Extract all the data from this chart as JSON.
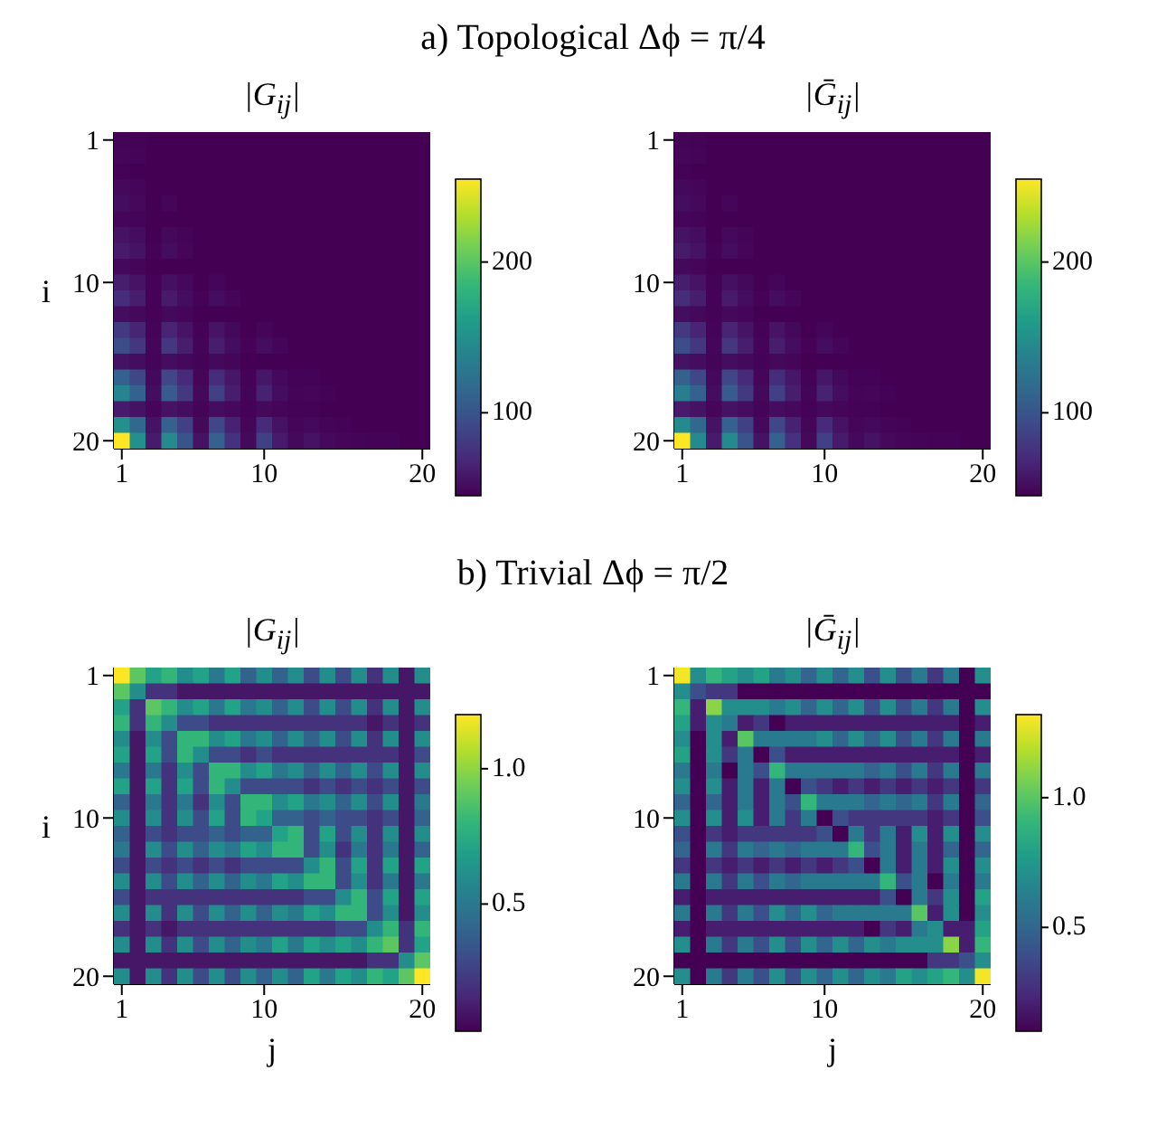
{
  "chart_data": [
    {
      "type": "heatmap",
      "title": "|G$_{ij}$|",
      "ylabel": "i",
      "annotations": [
        "a) Topological Δϕ = π/4"
      ],
      "categories": [
        "1",
        null,
        null,
        null,
        null,
        null,
        null,
        null,
        null,
        "10",
        null,
        null,
        null,
        null,
        null,
        null,
        null,
        null,
        null,
        "20"
      ],
      "y_categories": [
        "1",
        null,
        null,
        null,
        null,
        null,
        null,
        null,
        null,
        "10",
        null,
        null,
        null,
        null,
        null,
        null,
        null,
        null,
        null,
        "20"
      ],
      "clim": [
        45,
        255
      ],
      "cticks": [
        100,
        200
      ],
      "cells": [
        [
          47,
          46,
          45,
          45,
          45,
          45,
          45,
          45,
          45,
          45,
          45,
          45,
          45,
          45,
          45,
          45,
          45,
          45,
          45,
          45
        ],
        [
          48,
          47,
          45,
          45,
          45,
          45,
          45,
          45,
          45,
          45,
          45,
          45,
          45,
          45,
          45,
          45,
          45,
          45,
          45,
          45
        ],
        [
          46,
          45,
          45,
          45,
          45,
          45,
          45,
          45,
          45,
          45,
          45,
          45,
          45,
          45,
          45,
          45,
          45,
          45,
          45,
          45
        ],
        [
          50,
          48,
          45,
          45,
          45,
          45,
          45,
          45,
          45,
          45,
          45,
          45,
          45,
          45,
          45,
          45,
          45,
          45,
          45,
          45
        ],
        [
          52,
          50,
          45,
          48,
          45,
          45,
          45,
          45,
          45,
          45,
          45,
          45,
          45,
          45,
          45,
          45,
          45,
          45,
          45,
          45
        ],
        [
          48,
          47,
          45,
          45,
          45,
          45,
          45,
          45,
          45,
          45,
          45,
          45,
          45,
          45,
          45,
          45,
          45,
          45,
          45,
          45
        ],
        [
          55,
          52,
          45,
          50,
          47,
          45,
          45,
          45,
          45,
          45,
          45,
          45,
          45,
          45,
          45,
          45,
          45,
          45,
          45,
          45
        ],
        [
          60,
          55,
          46,
          52,
          48,
          45,
          45,
          45,
          45,
          45,
          45,
          45,
          45,
          45,
          45,
          45,
          45,
          45,
          45,
          45
        ],
        [
          50,
          48,
          45,
          45,
          45,
          45,
          45,
          45,
          45,
          45,
          45,
          45,
          45,
          45,
          45,
          45,
          45,
          45,
          45,
          45
        ],
        [
          62,
          56,
          46,
          54,
          50,
          45,
          48,
          45,
          45,
          45,
          45,
          45,
          45,
          45,
          45,
          45,
          45,
          45,
          45,
          45
        ],
        [
          72,
          62,
          46,
          60,
          52,
          46,
          52,
          48,
          45,
          45,
          45,
          45,
          45,
          45,
          45,
          45,
          45,
          45,
          45,
          45
        ],
        [
          52,
          50,
          46,
          50,
          48,
          45,
          45,
          45,
          45,
          45,
          45,
          45,
          45,
          45,
          45,
          45,
          45,
          45,
          45,
          45
        ],
        [
          80,
          66,
          47,
          66,
          56,
          46,
          56,
          50,
          45,
          48,
          45,
          45,
          45,
          45,
          45,
          45,
          45,
          45,
          45,
          45
        ],
        [
          95,
          78,
          48,
          78,
          62,
          47,
          62,
          52,
          46,
          52,
          48,
          45,
          45,
          45,
          45,
          45,
          45,
          45,
          45,
          45
        ],
        [
          55,
          52,
          47,
          52,
          50,
          46,
          50,
          48,
          45,
          45,
          45,
          45,
          45,
          45,
          45,
          45,
          45,
          45,
          45,
          45
        ],
        [
          110,
          90,
          50,
          90,
          70,
          48,
          72,
          58,
          46,
          58,
          50,
          46,
          46,
          45,
          45,
          45,
          45,
          45,
          45,
          45
        ],
        [
          140,
          110,
          52,
          105,
          80,
          50,
          85,
          62,
          47,
          65,
          52,
          47,
          48,
          46,
          45,
          45,
          45,
          45,
          45,
          45
        ],
        [
          60,
          55,
          48,
          55,
          52,
          47,
          52,
          50,
          46,
          50,
          48,
          46,
          46,
          45,
          45,
          45,
          45,
          45,
          45,
          45
        ],
        [
          150,
          115,
          55,
          110,
          85,
          50,
          90,
          65,
          48,
          70,
          55,
          48,
          50,
          47,
          46,
          45,
          45,
          45,
          45,
          45
        ],
        [
          255,
          150,
          60,
          145,
          100,
          55,
          110,
          75,
          50,
          85,
          60,
          50,
          55,
          50,
          48,
          47,
          46,
          46,
          45,
          45
        ]
      ]
    },
    {
      "type": "heatmap",
      "title": "|Ḡ$_{ij}$|",
      "categories": [
        "1",
        null,
        null,
        null,
        null,
        null,
        null,
        null,
        null,
        "10",
        null,
        null,
        null,
        null,
        null,
        null,
        null,
        null,
        null,
        "20"
      ],
      "y_categories": [
        "1",
        null,
        null,
        null,
        null,
        null,
        null,
        null,
        null,
        "10",
        null,
        null,
        null,
        null,
        null,
        null,
        null,
        null,
        null,
        "20"
      ],
      "clim": [
        45,
        255
      ],
      "cticks": [
        100,
        200
      ],
      "cells": [
        [
          47,
          46,
          45,
          45,
          45,
          45,
          45,
          45,
          45,
          45,
          45,
          45,
          45,
          45,
          45,
          45,
          45,
          45,
          45,
          45
        ],
        [
          48,
          47,
          45,
          45,
          45,
          45,
          45,
          45,
          45,
          45,
          45,
          45,
          45,
          45,
          45,
          45,
          45,
          45,
          45,
          45
        ],
        [
          46,
          45,
          45,
          45,
          45,
          45,
          45,
          45,
          45,
          45,
          45,
          45,
          45,
          45,
          45,
          45,
          45,
          45,
          45,
          45
        ],
        [
          50,
          48,
          45,
          45,
          45,
          45,
          45,
          45,
          45,
          45,
          45,
          45,
          45,
          45,
          45,
          45,
          45,
          45,
          45,
          45
        ],
        [
          52,
          50,
          45,
          48,
          45,
          45,
          45,
          45,
          45,
          45,
          45,
          45,
          45,
          45,
          45,
          45,
          45,
          45,
          45,
          45
        ],
        [
          48,
          47,
          45,
          45,
          45,
          45,
          45,
          45,
          45,
          45,
          45,
          45,
          45,
          45,
          45,
          45,
          45,
          45,
          45,
          45
        ],
        [
          55,
          52,
          45,
          50,
          47,
          45,
          45,
          45,
          45,
          45,
          45,
          45,
          45,
          45,
          45,
          45,
          45,
          45,
          45,
          45
        ],
        [
          60,
          55,
          46,
          52,
          48,
          45,
          45,
          45,
          45,
          45,
          45,
          45,
          45,
          45,
          45,
          45,
          45,
          45,
          45,
          45
        ],
        [
          50,
          48,
          45,
          45,
          45,
          45,
          45,
          45,
          45,
          45,
          45,
          45,
          45,
          45,
          45,
          45,
          45,
          45,
          45,
          45
        ],
        [
          62,
          56,
          46,
          54,
          50,
          45,
          48,
          45,
          45,
          45,
          45,
          45,
          45,
          45,
          45,
          45,
          45,
          45,
          45,
          45
        ],
        [
          72,
          62,
          46,
          60,
          52,
          46,
          52,
          48,
          45,
          45,
          45,
          45,
          45,
          45,
          45,
          45,
          45,
          45,
          45,
          45
        ],
        [
          52,
          50,
          46,
          50,
          48,
          45,
          45,
          45,
          45,
          45,
          45,
          45,
          45,
          45,
          45,
          45,
          45,
          45,
          45,
          45
        ],
        [
          80,
          66,
          47,
          66,
          56,
          46,
          56,
          50,
          45,
          48,
          45,
          45,
          45,
          45,
          45,
          45,
          45,
          45,
          45,
          45
        ],
        [
          95,
          78,
          48,
          78,
          62,
          47,
          62,
          52,
          46,
          52,
          48,
          45,
          45,
          45,
          45,
          45,
          45,
          45,
          45,
          45
        ],
        [
          55,
          52,
          47,
          52,
          50,
          46,
          50,
          48,
          45,
          45,
          45,
          45,
          45,
          45,
          45,
          45,
          45,
          45,
          45,
          45
        ],
        [
          110,
          90,
          50,
          90,
          70,
          48,
          72,
          58,
          46,
          58,
          50,
          46,
          46,
          45,
          45,
          45,
          45,
          45,
          45,
          45
        ],
        [
          135,
          110,
          52,
          105,
          80,
          50,
          85,
          62,
          47,
          65,
          52,
          47,
          48,
          46,
          45,
          45,
          45,
          45,
          45,
          45
        ],
        [
          60,
          55,
          48,
          55,
          52,
          47,
          52,
          50,
          46,
          50,
          48,
          46,
          46,
          45,
          45,
          45,
          45,
          45,
          45,
          45
        ],
        [
          145,
          115,
          55,
          110,
          85,
          50,
          90,
          65,
          48,
          70,
          55,
          48,
          50,
          47,
          46,
          45,
          45,
          45,
          45,
          45
        ],
        [
          255,
          145,
          60,
          145,
          100,
          55,
          110,
          75,
          50,
          85,
          60,
          50,
          55,
          50,
          48,
          47,
          46,
          46,
          45,
          45
        ]
      ]
    },
    {
      "type": "heatmap",
      "title": "|G$_{ij}$|",
      "xlabel": "j",
      "ylabel": "i",
      "annotations": [
        "b) Trivial Δϕ = π/2"
      ],
      "categories": [
        "1",
        null,
        null,
        null,
        null,
        null,
        null,
        null,
        null,
        "10",
        null,
        null,
        null,
        null,
        null,
        null,
        null,
        null,
        null,
        "20"
      ],
      "y_categories": [
        "1",
        null,
        null,
        null,
        null,
        null,
        null,
        null,
        null,
        "10",
        null,
        null,
        null,
        null,
        null,
        null,
        null,
        null,
        null,
        "20"
      ],
      "clim": [
        0.03,
        1.2
      ],
      "cticks": [
        0.5,
        {
          "value": 1,
          "label": "1.0"
        }
      ],
      "cells": [
        [
          1.2,
          0.9,
          0.7,
          0.8,
          0.6,
          0.7,
          0.5,
          0.7,
          0.4,
          0.6,
          0.4,
          0.6,
          0.3,
          0.6,
          0.3,
          0.6,
          0.2,
          0.6,
          0.1,
          0.6
        ],
        [
          0.9,
          0.6,
          0.2,
          0.2,
          0.1,
          0.1,
          0.1,
          0.1,
          0.1,
          0.1,
          0.1,
          0.1,
          0.1,
          0.1,
          0.1,
          0.1,
          0.1,
          0.1,
          0.1,
          0.1
        ],
        [
          0.7,
          0.2,
          0.9,
          0.8,
          0.6,
          0.7,
          0.5,
          0.7,
          0.5,
          0.6,
          0.4,
          0.6,
          0.3,
          0.6,
          0.3,
          0.6,
          0.2,
          0.6,
          0.1,
          0.6
        ],
        [
          0.8,
          0.2,
          0.8,
          0.6,
          0.3,
          0.3,
          0.2,
          0.2,
          0.2,
          0.2,
          0.2,
          0.2,
          0.2,
          0.2,
          0.2,
          0.2,
          0.1,
          0.2,
          0.1,
          0.2
        ],
        [
          0.6,
          0.1,
          0.6,
          0.3,
          0.8,
          0.8,
          0.6,
          0.7,
          0.5,
          0.6,
          0.4,
          0.6,
          0.4,
          0.6,
          0.3,
          0.6,
          0.2,
          0.6,
          0.1,
          0.6
        ],
        [
          0.7,
          0.1,
          0.7,
          0.3,
          0.8,
          0.6,
          0.3,
          0.3,
          0.2,
          0.3,
          0.2,
          0.2,
          0.2,
          0.2,
          0.2,
          0.2,
          0.2,
          0.2,
          0.1,
          0.3
        ],
        [
          0.5,
          0.1,
          0.5,
          0.2,
          0.6,
          0.3,
          0.8,
          0.8,
          0.6,
          0.7,
          0.5,
          0.6,
          0.4,
          0.6,
          0.4,
          0.6,
          0.3,
          0.6,
          0.1,
          0.6
        ],
        [
          0.7,
          0.1,
          0.7,
          0.2,
          0.7,
          0.3,
          0.8,
          0.6,
          0.3,
          0.3,
          0.3,
          0.3,
          0.2,
          0.3,
          0.2,
          0.3,
          0.2,
          0.3,
          0.1,
          0.3
        ],
        [
          0.4,
          0.1,
          0.5,
          0.2,
          0.5,
          0.2,
          0.6,
          0.3,
          0.8,
          0.8,
          0.6,
          0.7,
          0.5,
          0.6,
          0.4,
          0.6,
          0.3,
          0.6,
          0.1,
          0.5
        ],
        [
          0.6,
          0.1,
          0.6,
          0.2,
          0.6,
          0.3,
          0.7,
          0.3,
          0.8,
          0.7,
          0.4,
          0.4,
          0.3,
          0.4,
          0.3,
          0.3,
          0.2,
          0.3,
          0.1,
          0.4
        ],
        [
          0.4,
          0.1,
          0.3,
          0.2,
          0.3,
          0.3,
          0.4,
          0.3,
          0.4,
          0.4,
          0.7,
          0.8,
          0.3,
          0.7,
          0.3,
          0.6,
          0.2,
          0.6,
          0.1,
          0.6
        ],
        [
          0.5,
          0.1,
          0.6,
          0.3,
          0.6,
          0.4,
          0.6,
          0.5,
          0.7,
          0.6,
          0.8,
          0.8,
          0.3,
          0.6,
          0.2,
          0.5,
          0.2,
          0.5,
          0.1,
          0.4
        ],
        [
          0.3,
          0.1,
          0.3,
          0.2,
          0.3,
          0.2,
          0.3,
          0.2,
          0.3,
          0.3,
          0.3,
          0.3,
          0.6,
          0.8,
          0.3,
          0.7,
          0.2,
          0.7,
          0.1,
          0.7
        ],
        [
          0.6,
          0.1,
          0.6,
          0.3,
          0.6,
          0.4,
          0.6,
          0.4,
          0.6,
          0.5,
          0.7,
          0.6,
          0.8,
          0.8,
          0.3,
          0.6,
          0.2,
          0.5,
          0.1,
          0.5
        ],
        [
          0.3,
          0.1,
          0.2,
          0.2,
          0.2,
          0.2,
          0.2,
          0.2,
          0.2,
          0.2,
          0.2,
          0.2,
          0.3,
          0.3,
          0.6,
          0.8,
          0.3,
          0.7,
          0.1,
          0.7
        ],
        [
          0.6,
          0.1,
          0.6,
          0.2,
          0.6,
          0.3,
          0.6,
          0.4,
          0.6,
          0.4,
          0.6,
          0.5,
          0.7,
          0.6,
          0.8,
          0.8,
          0.3,
          0.6,
          0.1,
          0.6
        ],
        [
          0.2,
          0.1,
          0.2,
          0.1,
          0.2,
          0.2,
          0.2,
          0.2,
          0.2,
          0.2,
          0.2,
          0.2,
          0.2,
          0.2,
          0.3,
          0.3,
          0.6,
          0.8,
          0.2,
          0.8
        ],
        [
          0.6,
          0.1,
          0.6,
          0.2,
          0.6,
          0.3,
          0.6,
          0.4,
          0.6,
          0.5,
          0.7,
          0.5,
          0.7,
          0.6,
          0.7,
          0.6,
          0.8,
          0.9,
          0.2,
          0.7
        ],
        [
          0.1,
          0.1,
          0.1,
          0.1,
          0.1,
          0.1,
          0.1,
          0.1,
          0.1,
          0.1,
          0.1,
          0.1,
          0.1,
          0.1,
          0.1,
          0.1,
          0.2,
          0.2,
          0.6,
          0.9
        ],
        [
          0.6,
          0.1,
          0.6,
          0.2,
          0.6,
          0.3,
          0.6,
          0.3,
          0.6,
          0.4,
          0.6,
          0.4,
          0.7,
          0.5,
          0.7,
          0.6,
          0.8,
          0.7,
          0.9,
          1.2
        ]
      ]
    },
    {
      "type": "heatmap",
      "title": "|Ḡ$_{ij}$|",
      "xlabel": "j",
      "categories": [
        "1",
        null,
        null,
        null,
        null,
        null,
        null,
        null,
        null,
        "10",
        null,
        null,
        null,
        null,
        null,
        null,
        null,
        null,
        null,
        "20"
      ],
      "y_categories": [
        "1",
        null,
        null,
        null,
        null,
        null,
        null,
        null,
        null,
        "10",
        null,
        null,
        null,
        null,
        null,
        null,
        null,
        null,
        null,
        "20"
      ],
      "clim": [
        0.1,
        1.32
      ],
      "cticks": [
        0.5,
        {
          "value": 1,
          "label": "1.0"
        }
      ],
      "cells": [
        [
          1.3,
          0.7,
          0.9,
          0.8,
          0.7,
          0.8,
          0.6,
          0.7,
          0.5,
          0.7,
          0.5,
          0.7,
          0.4,
          0.7,
          0.4,
          0.6,
          0.3,
          0.6,
          0.1,
          0.7
        ],
        [
          0.7,
          0.4,
          0.3,
          0.3,
          0.1,
          0.1,
          0.1,
          0.1,
          0.1,
          0.1,
          0.1,
          0.1,
          0.1,
          0.1,
          0.1,
          0.1,
          0.1,
          0.1,
          0.1,
          0.1
        ],
        [
          0.9,
          0.2,
          1.1,
          0.7,
          0.7,
          0.7,
          0.6,
          0.7,
          0.5,
          0.7,
          0.5,
          0.7,
          0.4,
          0.7,
          0.4,
          0.6,
          0.3,
          0.6,
          0.1,
          0.7
        ],
        [
          0.8,
          0.2,
          0.7,
          0.6,
          0.2,
          0.3,
          0.1,
          0.2,
          0.2,
          0.2,
          0.2,
          0.2,
          0.2,
          0.2,
          0.2,
          0.2,
          0.2,
          0.2,
          0.1,
          0.2
        ],
        [
          0.7,
          0.1,
          0.7,
          0.2,
          1.0,
          0.6,
          0.6,
          0.6,
          0.6,
          0.7,
          0.5,
          0.7,
          0.5,
          0.7,
          0.4,
          0.6,
          0.3,
          0.6,
          0.1,
          0.6
        ],
        [
          0.8,
          0.1,
          0.7,
          0.3,
          0.6,
          0.1,
          0.4,
          0.2,
          0.2,
          0.2,
          0.2,
          0.2,
          0.2,
          0.2,
          0.2,
          0.2,
          0.2,
          0.2,
          0.1,
          0.2
        ],
        [
          0.6,
          0.1,
          0.6,
          0.1,
          0.6,
          0.4,
          0.9,
          0.6,
          0.6,
          0.6,
          0.6,
          0.6,
          0.5,
          0.6,
          0.4,
          0.6,
          0.3,
          0.6,
          0.1,
          0.6
        ],
        [
          0.7,
          0.1,
          0.7,
          0.2,
          0.6,
          0.2,
          0.6,
          0.1,
          0.4,
          0.3,
          0.2,
          0.3,
          0.2,
          0.3,
          0.2,
          0.3,
          0.2,
          0.3,
          0.1,
          0.3
        ],
        [
          0.5,
          0.1,
          0.5,
          0.2,
          0.6,
          0.2,
          0.6,
          0.4,
          0.9,
          0.6,
          0.6,
          0.6,
          0.5,
          0.6,
          0.5,
          0.6,
          0.3,
          0.6,
          0.1,
          0.5
        ],
        [
          0.7,
          0.1,
          0.7,
          0.2,
          0.7,
          0.2,
          0.6,
          0.3,
          0.6,
          0.1,
          0.4,
          0.3,
          0.3,
          0.3,
          0.3,
          0.3,
          0.2,
          0.3,
          0.1,
          0.4
        ],
        [
          0.4,
          0.1,
          0.3,
          0.2,
          0.3,
          0.3,
          0.3,
          0.3,
          0.3,
          0.4,
          0.1,
          0.6,
          0.3,
          0.6,
          0.2,
          0.7,
          0.2,
          0.7,
          0.1,
          0.7
        ],
        [
          0.5,
          0.1,
          0.6,
          0.3,
          0.6,
          0.5,
          0.6,
          0.5,
          0.6,
          0.6,
          0.6,
          0.9,
          0.4,
          0.6,
          0.2,
          0.6,
          0.2,
          0.5,
          0.1,
          0.5
        ],
        [
          0.3,
          0.1,
          0.3,
          0.2,
          0.3,
          0.2,
          0.3,
          0.2,
          0.3,
          0.2,
          0.3,
          0.4,
          0.1,
          0.6,
          0.2,
          0.6,
          0.2,
          0.7,
          0.1,
          0.7
        ],
        [
          0.6,
          0.1,
          0.6,
          0.3,
          0.6,
          0.4,
          0.6,
          0.5,
          0.6,
          0.6,
          0.6,
          0.6,
          0.6,
          0.9,
          0.4,
          0.6,
          0.1,
          0.6,
          0.1,
          0.6
        ],
        [
          0.2,
          0.1,
          0.2,
          0.2,
          0.2,
          0.2,
          0.2,
          0.2,
          0.2,
          0.2,
          0.2,
          0.2,
          0.2,
          0.4,
          0.1,
          0.6,
          0.3,
          0.7,
          0.1,
          0.8
        ],
        [
          0.6,
          0.1,
          0.6,
          0.3,
          0.6,
          0.4,
          0.7,
          0.5,
          0.7,
          0.5,
          0.6,
          0.6,
          0.6,
          0.6,
          0.6,
          1.0,
          0.2,
          0.7,
          0.1,
          0.7
        ],
        [
          0.2,
          0.1,
          0.2,
          0.2,
          0.2,
          0.2,
          0.2,
          0.2,
          0.2,
          0.2,
          0.2,
          0.2,
          0.1,
          0.3,
          0.2,
          0.6,
          0.7,
          0.2,
          0.2,
          0.8
        ],
        [
          0.7,
          0.1,
          0.6,
          0.3,
          0.6,
          0.4,
          0.7,
          0.4,
          0.7,
          0.5,
          0.7,
          0.5,
          0.7,
          0.6,
          0.7,
          0.7,
          0.7,
          1.1,
          0.2,
          0.9
        ],
        [
          0.1,
          0.1,
          0.1,
          0.1,
          0.1,
          0.1,
          0.1,
          0.1,
          0.1,
          0.1,
          0.1,
          0.1,
          0.1,
          0.1,
          0.1,
          0.1,
          0.3,
          0.3,
          0.4,
          0.7
        ],
        [
          0.7,
          0.1,
          0.6,
          0.3,
          0.6,
          0.4,
          0.7,
          0.4,
          0.7,
          0.5,
          0.7,
          0.5,
          0.7,
          0.6,
          0.8,
          0.7,
          0.8,
          0.9,
          0.7,
          1.3
        ]
      ]
    }
  ]
}
